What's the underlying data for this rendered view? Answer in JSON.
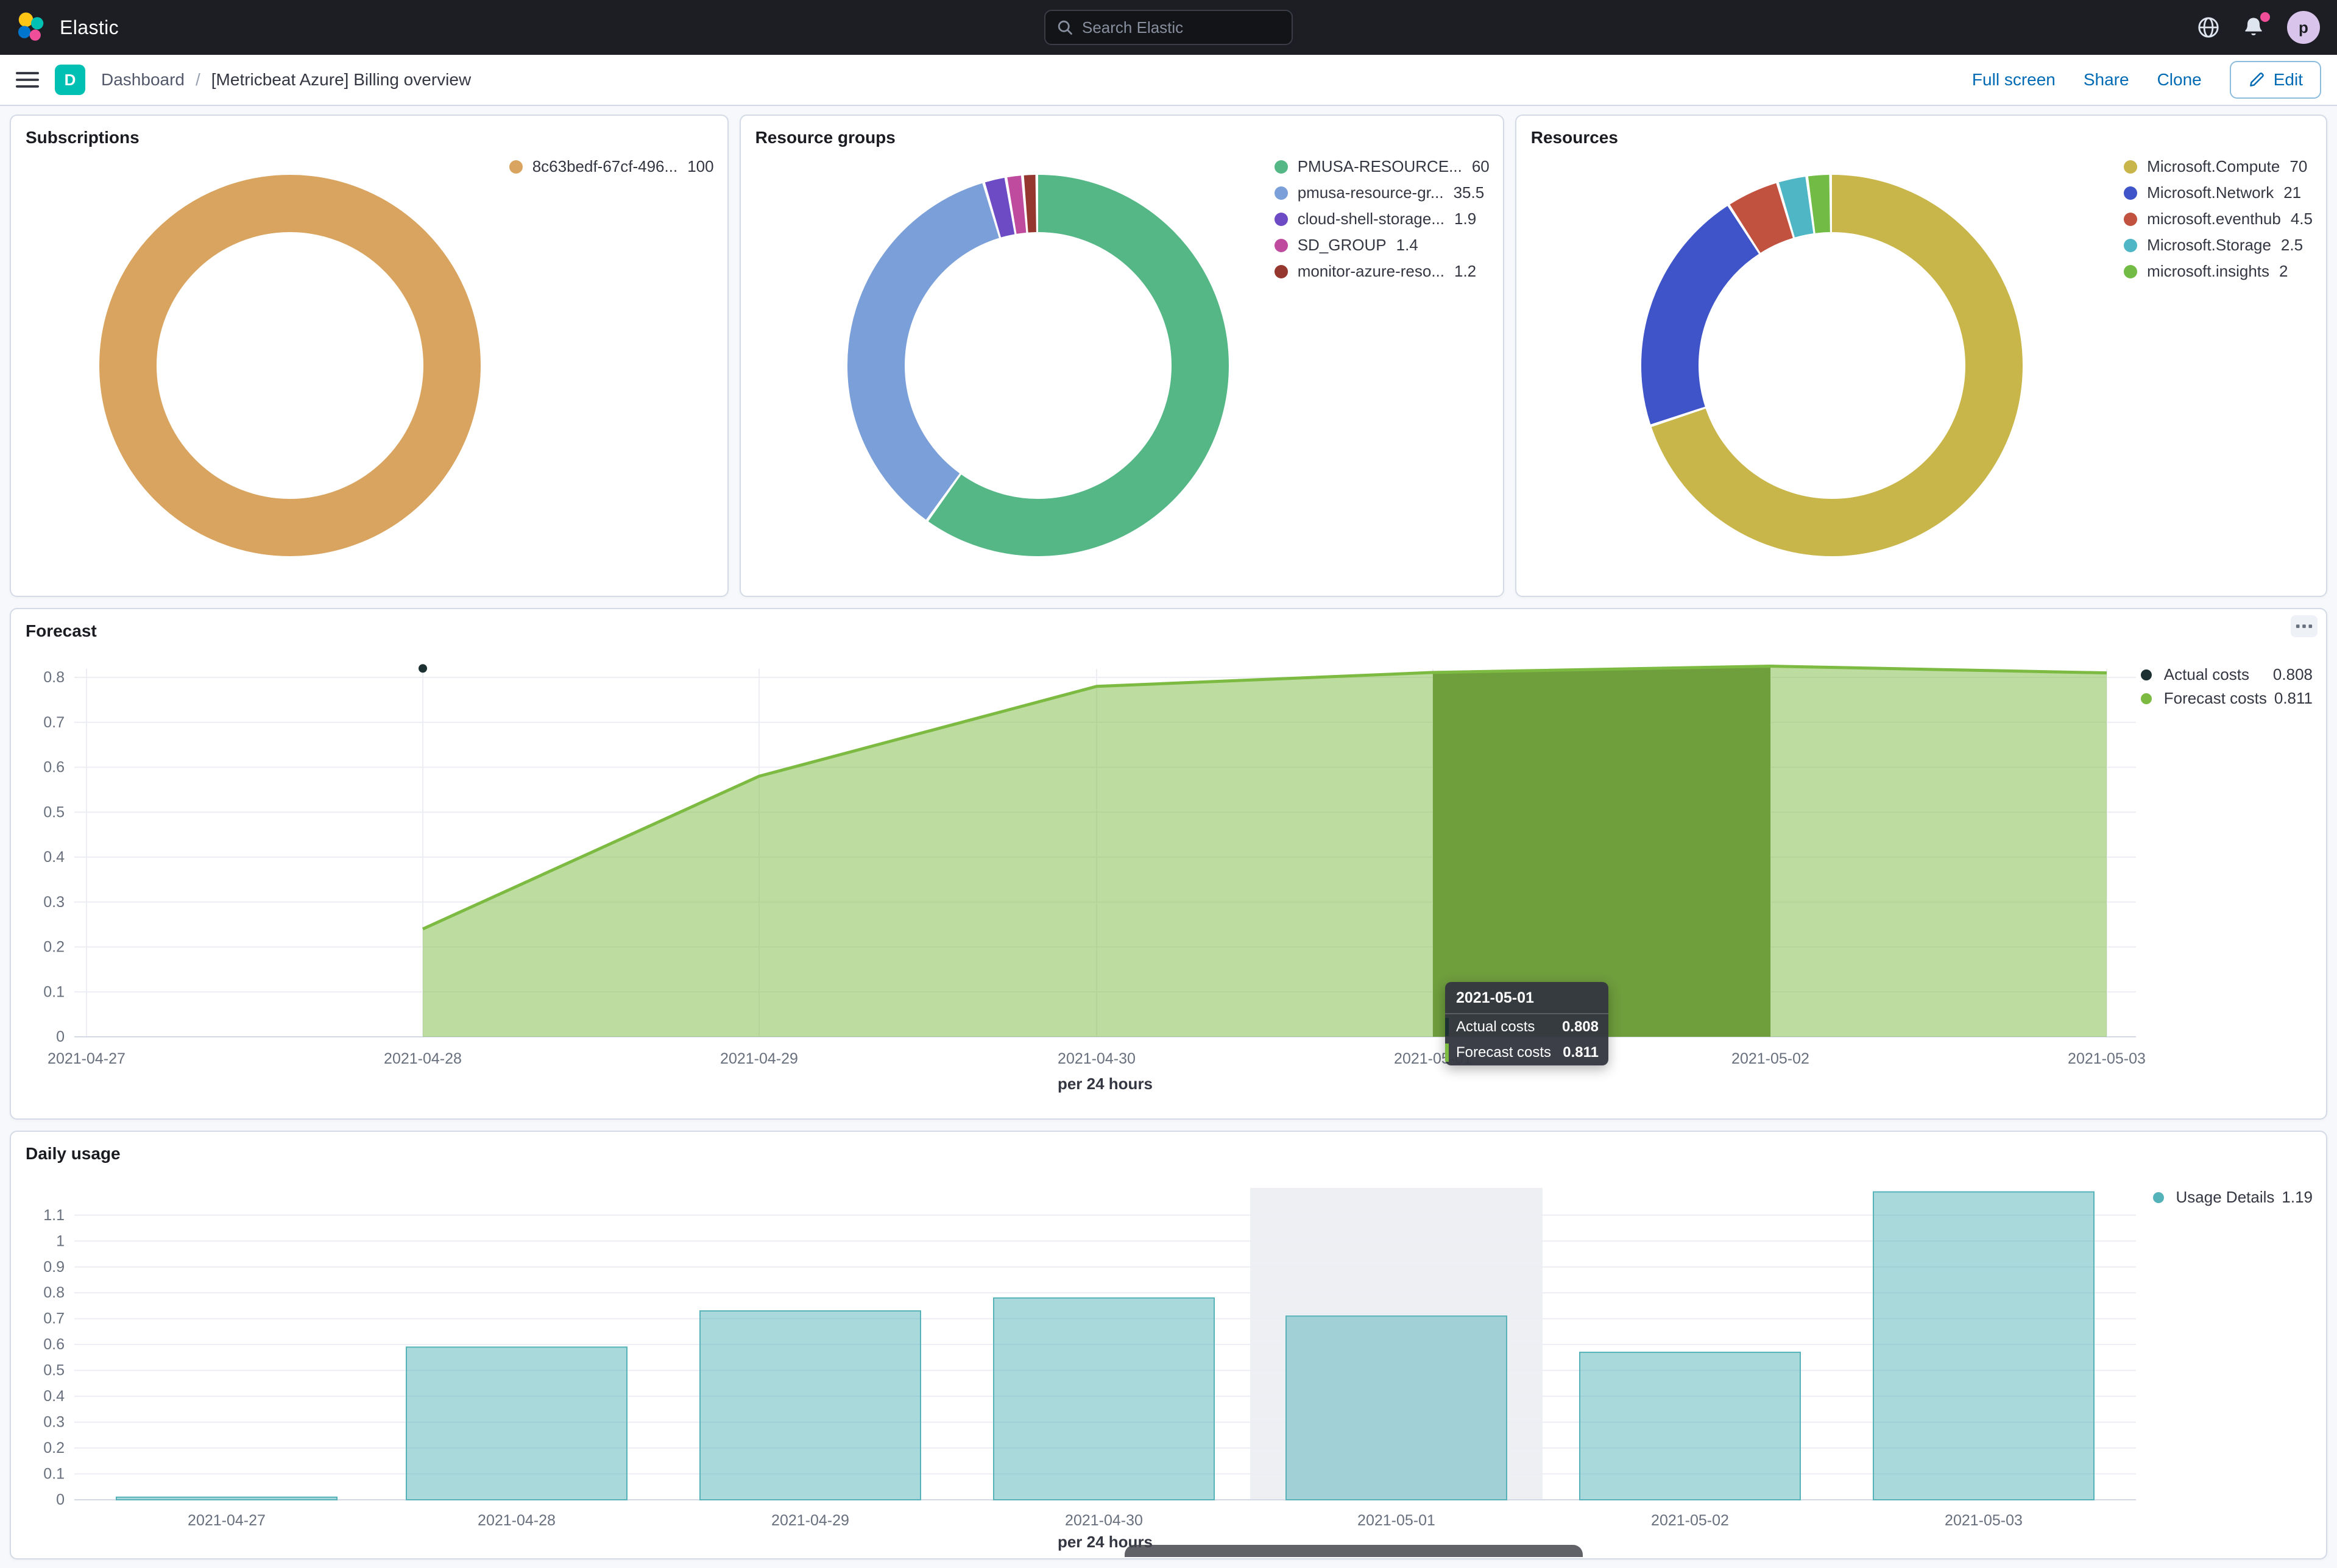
{
  "header": {
    "brand": "Elastic",
    "search": {
      "placeholder": "Search Elastic"
    },
    "notification_color": "#F04E98",
    "avatar": {
      "initial": "p",
      "color": "#D9C4EC"
    }
  },
  "nav": {
    "space": {
      "initial": "D",
      "color": "#00BFB3"
    },
    "breadcrumbs": [
      "Dashboard",
      "[Metricbeat Azure] Billing overview"
    ],
    "actions": {
      "full_screen": "Full screen",
      "share": "Share",
      "clone": "Clone",
      "edit": "Edit"
    }
  },
  "icons": {
    "search": "magnifier",
    "menu": "hamburger",
    "edit": "pencil",
    "panel_options": "boxes-horizontal",
    "globe": "globe",
    "notifications": "bell-with-badge"
  },
  "colors": {
    "link": "#006BB4",
    "header_bg": "#1D1E24",
    "panel_border": "#D3DAE6"
  },
  "chart_data": [
    {
      "id": "subscriptions",
      "type": "pie",
      "donut": true,
      "title": "Subscriptions",
      "slices": [
        {
          "label": "8c63bedf-67cf-496...",
          "value": 100,
          "color": "#D9A45F"
        }
      ]
    },
    {
      "id": "resource_groups",
      "type": "pie",
      "donut": true,
      "title": "Resource groups",
      "slices": [
        {
          "label": "PMUSA-RESOURCE...",
          "value": 60,
          "color": "#55B786"
        },
        {
          "label": "pmusa-resource-gr...",
          "value": 35.5,
          "color": "#7B9FD8"
        },
        {
          "label": "cloud-shell-storage...",
          "value": 1.9,
          "color": "#6C4BC4"
        },
        {
          "label": "SD_GROUP",
          "value": 1.4,
          "color": "#BE4B9D"
        },
        {
          "label": "monitor-azure-reso...",
          "value": 1.2,
          "color": "#95372F"
        }
      ]
    },
    {
      "id": "resources",
      "type": "pie",
      "donut": true,
      "title": "Resources",
      "slices": [
        {
          "label": "Microsoft.Compute",
          "value": 70,
          "color": "#C9B64B"
        },
        {
          "label": "Microsoft.Network",
          "value": 21,
          "color": "#3E54C8"
        },
        {
          "label": "microsoft.eventhub",
          "value": 4.5,
          "color": "#C25240"
        },
        {
          "label": "Microsoft.Storage",
          "value": 2.5,
          "color": "#4EB6C4"
        },
        {
          "label": "microsoft.insights",
          "value": 2.0,
          "color": "#72BC45"
        }
      ]
    },
    {
      "id": "forecast",
      "type": "area",
      "title": "Forecast",
      "x": [
        "2021-04-27",
        "2021-04-28",
        "2021-04-29",
        "2021-04-30",
        "2021-05-01",
        "2021-05-02",
        "2021-05-03"
      ],
      "series": [
        {
          "name": "Actual costs",
          "color": "#1D3133",
          "values": [
            null,
            null,
            null,
            null,
            0.808,
            null,
            null
          ]
        },
        {
          "name": "Forecast costs",
          "color": "#7CBA42",
          "values": [
            null,
            0.24,
            0.58,
            0.78,
            0.811,
            0.825,
            0.81
          ]
        }
      ],
      "area_fill": "rgba(124,186,66,0.5)",
      "highlight_fill": "#6F9E3D",
      "highlight_band": [
        "2021-05-01",
        "2021-05-02"
      ],
      "point_marker": {
        "x": "2021-04-28",
        "y": 0.82,
        "color": "#1D3133"
      },
      "xlabel": "per 24 hours",
      "ylim": [
        0,
        0.82
      ],
      "yticks": [
        "0",
        "0.1",
        "0.2",
        "0.3",
        "0.4",
        "0.5",
        "0.6",
        "0.7",
        "0.8"
      ],
      "grid": true,
      "legend_position": "right",
      "legend": [
        {
          "label": "Actual costs",
          "value": "0.808",
          "color": "#1D3133"
        },
        {
          "label": "Forecast costs",
          "value": "0.811",
          "color": "#7CBA42"
        }
      ],
      "tooltip": {
        "header": "2021-05-01",
        "rows": [
          {
            "label": "Actual costs",
            "value": "0.808",
            "color": "#1D3133"
          },
          {
            "label": "Forecast costs",
            "value": "0.811",
            "color": "#7CBA42"
          }
        ]
      }
    },
    {
      "id": "daily_usage",
      "type": "bar",
      "title": "Daily usage",
      "categories": [
        "2021-04-27",
        "2021-04-28",
        "2021-04-29",
        "2021-04-30",
        "2021-05-01",
        "2021-05-02",
        "2021-05-03"
      ],
      "values": [
        0.01,
        0.59,
        0.73,
        0.78,
        0.71,
        0.57,
        1.19
      ],
      "bar_color": "rgba(86,179,185,0.5)",
      "bar_edge": "#57B3B9",
      "hover_band_index": 4,
      "hover_band_color": "#EDEFF3",
      "xlabel": "per 24 hours",
      "ylim": [
        0,
        1.19
      ],
      "yticks": [
        "0",
        "0.1",
        "0.2",
        "0.3",
        "0.4",
        "0.5",
        "0.6",
        "0.7",
        "0.8",
        "0.9",
        "1",
        "1.1"
      ],
      "grid": true,
      "legend_position": "right",
      "legend": [
        {
          "label": "Usage Details",
          "value": "1.19",
          "color": "#54B3B9"
        }
      ]
    }
  ]
}
